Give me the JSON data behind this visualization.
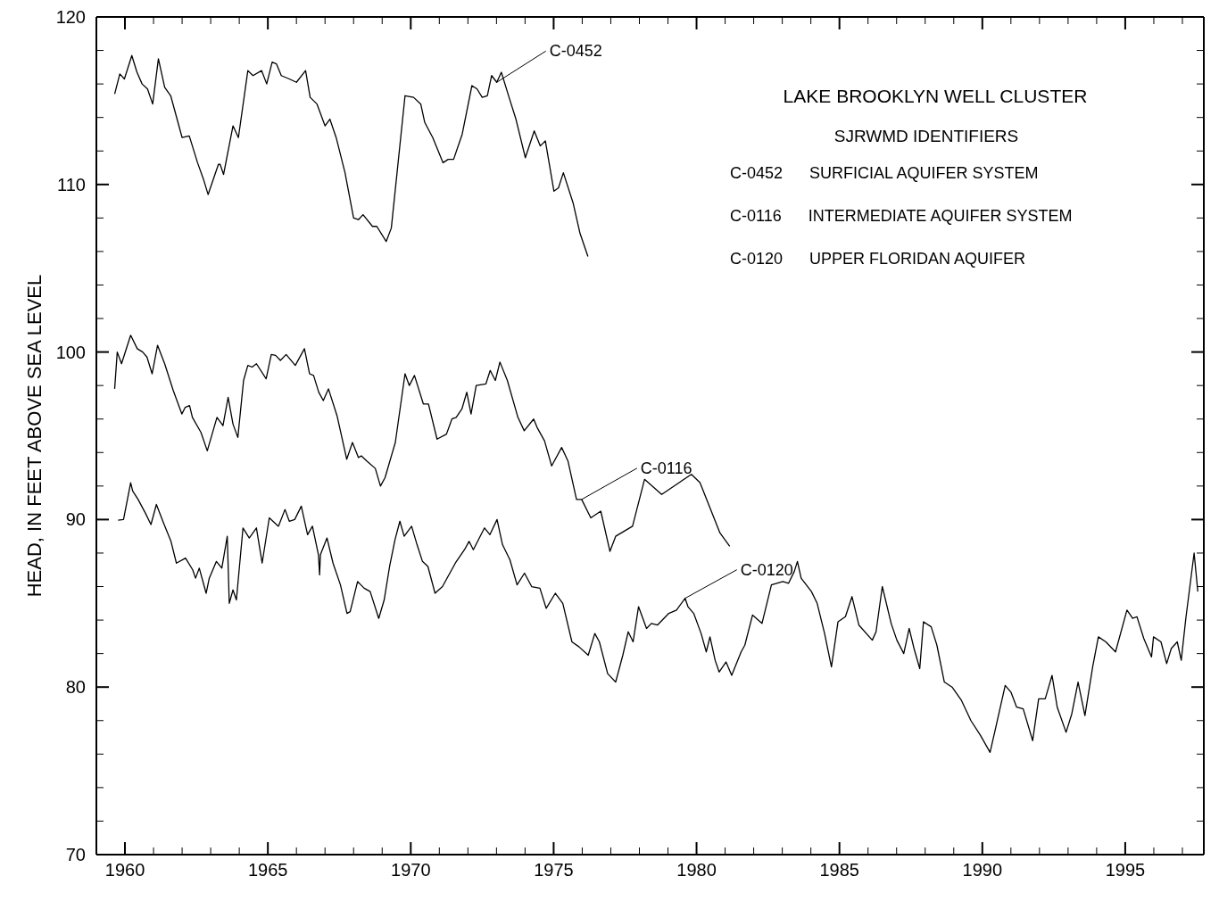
{
  "chart_data": {
    "type": "line",
    "title": "LAKE BROOKLYN WELL CLUSTER",
    "subtitle": "SJRWMD IDENTIFIERS",
    "ylabel": "HEAD, IN FEET ABOVE SEA LEVEL",
    "annotations": [
      "C-0452      SURFICIAL AQUIFER SYSTEM",
      "C-0116      INTERMEDIATE AQUIFER SYSTEM",
      "C-0120      UPPER FLORIDAN AQUIFER"
    ],
    "xlim": [
      1959,
      1997.75
    ],
    "ylim": [
      70,
      120
    ],
    "xticks": [
      {
        "value": 1959,
        "label": null
      },
      1960,
      {
        "value": 1961,
        "label": null
      },
      {
        "value": 1962,
        "label": null
      },
      {
        "value": 1963,
        "label": null
      },
      {
        "value": 1964,
        "label": null
      },
      1965,
      {
        "value": 1966,
        "label": null
      },
      {
        "value": 1967,
        "label": null
      },
      {
        "value": 1968,
        "label": null
      },
      {
        "value": 1969,
        "label": null
      },
      1970,
      {
        "value": 1971,
        "label": null
      },
      {
        "value": 1972,
        "label": null
      },
      {
        "value": 1973,
        "label": null
      },
      {
        "value": 1974,
        "label": null
      },
      1975,
      {
        "value": 1976,
        "label": null
      },
      {
        "value": 1977,
        "label": null
      },
      {
        "value": 1978,
        "label": null
      },
      {
        "value": 1979,
        "label": null
      },
      1980,
      {
        "value": 1981,
        "label": null
      },
      {
        "value": 1982,
        "label": null
      },
      {
        "value": 1983,
        "label": null
      },
      {
        "value": 1984,
        "label": null
      },
      1985,
      {
        "value": 1986,
        "label": null
      },
      {
        "value": 1987,
        "label": null
      },
      {
        "value": 1988,
        "label": null
      },
      {
        "value": 1989,
        "label": null
      },
      1990,
      {
        "value": 1991,
        "label": null
      },
      {
        "value": 1992,
        "label": null
      },
      {
        "value": 1993,
        "label": null
      },
      {
        "value": 1994,
        "label": null
      },
      1995,
      {
        "value": 1996,
        "label": null
      },
      {
        "value": 1997,
        "label": null
      }
    ],
    "yticks": [
      70,
      {
        "value": 72,
        "label": null
      },
      {
        "value": 74,
        "label": null
      },
      {
        "value": 76,
        "label": null
      },
      {
        "value": 78,
        "label": null
      },
      80,
      {
        "value": 82,
        "label": null
      },
      {
        "value": 84,
        "label": null
      },
      {
        "value": 86,
        "label": null
      },
      {
        "value": 88,
        "label": null
      },
      90,
      {
        "value": 92,
        "label": null
      },
      {
        "value": 94,
        "label": null
      },
      {
        "value": 96,
        "label": null
      },
      {
        "value": 98,
        "label": null
      },
      100,
      {
        "value": 102,
        "label": null
      },
      {
        "value": 104,
        "label": null
      },
      {
        "value": 106,
        "label": null
      },
      {
        "value": 108,
        "label": null
      },
      110,
      {
        "value": 112,
        "label": null
      },
      {
        "value": 114,
        "label": null
      },
      {
        "value": 116,
        "label": null
      },
      {
        "value": 118,
        "label": null
      },
      120
    ],
    "marker": "none",
    "line_style": "solid",
    "series": [
      {
        "name": "C-0452",
        "color": "#000000",
        "x": [
          1959.64,
          1959.82,
          1959.98,
          1960.24,
          1960.42,
          1960.6,
          1960.79,
          1960.97,
          1961.17,
          1961.39,
          1961.6,
          1962.0,
          1962.25,
          1962.54,
          1962.75,
          1962.91,
          1963.27,
          1963.33,
          1963.45,
          1963.78,
          1963.97,
          1964.3,
          1964.48,
          1964.78,
          1964.96,
          1965.15,
          1965.3,
          1965.47,
          1965.75,
          1966.0,
          1966.32,
          1966.48,
          1966.72,
          1967.0,
          1967.17,
          1967.39,
          1967.7,
          1968.0,
          1968.17,
          1968.33,
          1968.66,
          1968.81,
          1969.14,
          1969.32,
          1969.8,
          1970.1,
          1970.35,
          1970.49,
          1970.77,
          1971.13,
          1971.31,
          1971.5,
          1971.8,
          1972.14,
          1972.32,
          1972.5,
          1972.68,
          1972.83,
          1973.01,
          1973.17,
          1973.44,
          1973.68,
          1974.01,
          1974.32,
          1974.53,
          1974.71,
          1975.01,
          1975.17,
          1975.34,
          1975.68,
          1975.92,
          1976.2
        ],
        "values": [
          115.4,
          116.6,
          116.3,
          117.7,
          116.7,
          116.0,
          115.7,
          114.8,
          117.5,
          115.8,
          115.3,
          112.8,
          112.9,
          111.3,
          110.3,
          109.4,
          111.2,
          111.2,
          110.6,
          113.5,
          112.8,
          116.8,
          116.5,
          116.8,
          116.0,
          117.3,
          117.2,
          116.5,
          116.3,
          116.1,
          116.8,
          115.2,
          114.8,
          113.5,
          113.9,
          112.8,
          110.7,
          108.0,
          107.9,
          108.2,
          107.5,
          107.5,
          106.6,
          107.4,
          115.3,
          115.2,
          114.8,
          113.7,
          112.8,
          111.3,
          111.5,
          111.5,
          113.0,
          115.9,
          115.7,
          115.2,
          115.3,
          116.5,
          116.1,
          116.7,
          115.2,
          113.9,
          111.6,
          113.2,
          112.3,
          112.6,
          109.6,
          109.8,
          110.7,
          108.9,
          107.1,
          105.7
        ]
      },
      {
        "name": "C-0116",
        "color": "#000000",
        "x": [
          1959.64,
          1959.73,
          1959.88,
          1960.2,
          1960.43,
          1960.62,
          1960.77,
          1960.95,
          1961.14,
          1961.39,
          1961.69,
          1961.99,
          1962.11,
          1962.26,
          1962.36,
          1962.66,
          1962.88,
          1963.22,
          1963.43,
          1963.61,
          1963.78,
          1963.95,
          1964.15,
          1964.3,
          1964.45,
          1964.6,
          1964.94,
          1965.12,
          1965.27,
          1965.44,
          1965.64,
          1965.96,
          1966.28,
          1966.46,
          1966.6,
          1966.78,
          1966.94,
          1967.12,
          1967.42,
          1967.76,
          1967.96,
          1968.17,
          1968.27,
          1968.46,
          1968.76,
          1968.94,
          1969.1,
          1969.46,
          1969.8,
          1969.95,
          1970.13,
          1970.44,
          1970.62,
          1970.92,
          1971.25,
          1971.44,
          1971.59,
          1971.79,
          1971.96,
          1972.11,
          1972.29,
          1972.63,
          1972.78,
          1972.96,
          1973.12,
          1973.38,
          1973.75,
          1973.97,
          1974.3,
          1974.42,
          1974.68,
          1974.93,
          1975.28,
          1975.5,
          1975.8,
          1975.98,
          1976.3,
          1976.65,
          1976.97,
          1977.17,
          1977.76,
          1978.18,
          1978.78,
          1979.82,
          1980.12,
          1980.82,
          1981.16
        ],
        "values": [
          97.8,
          100.0,
          99.3,
          101.0,
          100.2,
          100.0,
          99.7,
          98.7,
          100.4,
          99.3,
          97.7,
          96.3,
          96.7,
          96.8,
          96.1,
          95.2,
          94.1,
          96.1,
          95.6,
          97.3,
          95.7,
          94.9,
          98.3,
          99.2,
          99.1,
          99.3,
          98.4,
          99.85,
          99.8,
          99.5,
          99.85,
          99.2,
          100.2,
          98.7,
          98.6,
          97.6,
          97.1,
          97.8,
          96.2,
          93.6,
          94.6,
          93.7,
          93.8,
          93.5,
          93.05,
          92.0,
          92.5,
          94.6,
          98.7,
          98.0,
          98.6,
          96.9,
          96.9,
          94.8,
          95.1,
          96.0,
          96.1,
          96.6,
          97.6,
          96.3,
          98.0,
          98.1,
          98.9,
          98.3,
          99.4,
          98.3,
          96.1,
          95.3,
          96.0,
          95.5,
          94.7,
          93.2,
          94.3,
          93.5,
          91.2,
          91.2,
          90.1,
          90.5,
          88.1,
          89.0,
          89.6,
          92.4,
          91.5,
          92.7,
          92.2,
          89.2,
          88.4
        ]
      },
      {
        "name": "C-0120",
        "color": "#000000",
        "x": [
          1959.76,
          1959.95,
          1960.2,
          1960.27,
          1960.46,
          1960.71,
          1960.91,
          1961.1,
          1961.35,
          1961.61,
          1961.8,
          1962.12,
          1962.37,
          1962.47,
          1962.6,
          1962.84,
          1962.95,
          1963.2,
          1963.39,
          1963.58,
          1963.65,
          1963.78,
          1963.9,
          1964.13,
          1964.35,
          1964.6,
          1964.8,
          1965.05,
          1965.37,
          1965.6,
          1965.75,
          1965.94,
          1966.17,
          1966.39,
          1966.56,
          1966.77,
          1966.81,
          1966.84,
          1967.07,
          1967.28,
          1967.54,
          1967.77,
          1967.88,
          1968.14,
          1968.37,
          1968.58,
          1968.88,
          1969.07,
          1969.26,
          1969.45,
          1969.62,
          1969.77,
          1970.03,
          1970.22,
          1970.41,
          1970.6,
          1970.85,
          1971.11,
          1971.56,
          1971.88,
          1972.04,
          1972.19,
          1972.58,
          1972.77,
          1973.02,
          1973.21,
          1973.47,
          1973.72,
          1973.98,
          1974.23,
          1974.52,
          1974.74,
          1975.06,
          1975.32,
          1975.64,
          1975.89,
          1976.21,
          1976.44,
          1976.6,
          1976.89,
          1977.17,
          1977.42,
          1977.61,
          1977.78,
          1977.97,
          1978.25,
          1978.42,
          1978.63,
          1979.03,
          1979.3,
          1979.6,
          1979.7,
          1979.9,
          1980.16,
          1980.34,
          1980.47,
          1980.65,
          1980.79,
          1981.03,
          1981.23,
          1981.56,
          1981.69,
          1981.96,
          1982.29,
          1982.62,
          1983.02,
          1983.22,
          1983.42,
          1983.53,
          1983.66,
          1984.02,
          1984.22,
          1984.48,
          1984.72,
          1984.95,
          1985.21,
          1985.44,
          1985.68,
          1986.15,
          1986.28,
          1986.5,
          1986.81,
          1987.01,
          1987.25,
          1987.44,
          1987.61,
          1987.81,
          1987.94,
          1988.21,
          1988.41,
          1988.67,
          1988.94,
          1989.27,
          1989.6,
          1989.94,
          1990.27,
          1990.47,
          1990.8,
          1991.0,
          1991.2,
          1991.43,
          1991.76,
          1991.97,
          1992.2,
          1992.44,
          1992.62,
          1992.93,
          1993.13,
          1993.35,
          1993.59,
          1993.86,
          1994.06,
          1994.32,
          1994.66,
          1995.06,
          1995.26,
          1995.41,
          1995.65,
          1995.92,
          1995.99,
          1996.25,
          1996.45,
          1996.61,
          1996.82,
          1996.96,
          1997.12,
          1997.41,
          1997.54
        ],
        "values": [
          89.96,
          90.0,
          92.2,
          91.7,
          91.2,
          90.4,
          89.7,
          90.9,
          89.8,
          88.7,
          87.4,
          87.7,
          87.0,
          86.5,
          87.1,
          85.6,
          86.5,
          87.5,
          87.1,
          89.0,
          85.0,
          85.8,
          85.2,
          89.5,
          88.9,
          89.5,
          87.4,
          90.1,
          89.6,
          90.6,
          89.9,
          90.0,
          90.8,
          89.1,
          89.6,
          87.9,
          86.7,
          87.9,
          88.9,
          87.4,
          86.1,
          84.4,
          84.5,
          86.3,
          85.9,
          85.7,
          84.1,
          85.2,
          87.2,
          88.8,
          89.9,
          89.0,
          89.6,
          88.5,
          87.5,
          87.2,
          85.6,
          86.0,
          87.4,
          88.2,
          88.7,
          88.2,
          89.5,
          89.1,
          90.0,
          88.5,
          87.6,
          86.1,
          86.8,
          86.0,
          85.9,
          84.7,
          85.6,
          85.0,
          82.7,
          82.4,
          81.9,
          83.2,
          82.7,
          80.8,
          80.3,
          81.9,
          83.3,
          82.7,
          84.8,
          83.5,
          83.8,
          83.7,
          84.4,
          84.6,
          85.3,
          84.8,
          84.4,
          83.2,
          82.1,
          83.0,
          81.6,
          80.9,
          81.5,
          80.7,
          82.1,
          82.5,
          84.3,
          83.8,
          86.1,
          86.3,
          86.2,
          86.9,
          87.5,
          86.5,
          85.7,
          85.0,
          83.2,
          81.2,
          83.9,
          84.2,
          85.4,
          83.7,
          82.8,
          83.3,
          86.0,
          83.8,
          82.8,
          82.0,
          83.5,
          82.3,
          81.1,
          83.9,
          83.6,
          82.5,
          80.3,
          80.0,
          79.2,
          78.0,
          77.1,
          76.1,
          77.6,
          80.1,
          79.7,
          78.8,
          78.7,
          76.8,
          79.3,
          79.3,
          80.7,
          78.8,
          77.3,
          78.4,
          80.3,
          78.3,
          81.2,
          83.0,
          82.7,
          82.1,
          84.6,
          84.1,
          84.2,
          82.9,
          81.8,
          83.0,
          82.7,
          81.4,
          82.3,
          82.7,
          81.6,
          84.1,
          88.0,
          85.7
        ]
      }
    ]
  }
}
